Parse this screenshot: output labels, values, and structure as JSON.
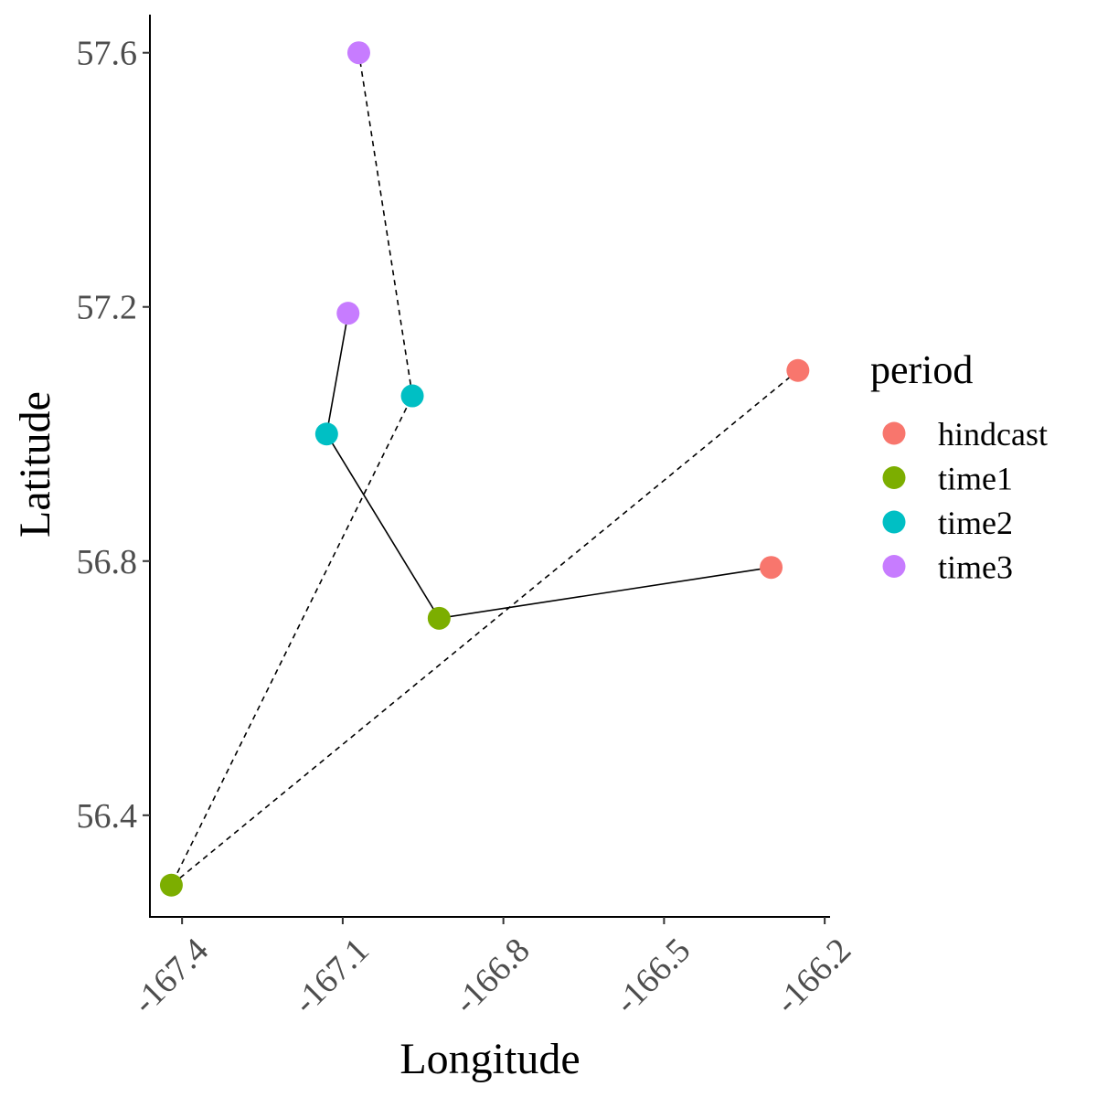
{
  "chart_data": {
    "type": "scatter",
    "title": "",
    "xlabel": "Longitude",
    "ylabel": "Latitude",
    "xlim": [
      -167.46,
      -166.19
    ],
    "ylim": [
      56.24,
      57.66
    ],
    "xticks": [
      -167.4,
      -167.1,
      -166.8,
      -166.5,
      -166.2
    ],
    "xtick_labels": [
      "-167.4",
      "-167.1",
      "-166.8",
      "-166.5",
      "-166.2"
    ],
    "yticks": [
      56.4,
      56.8,
      57.2,
      57.6
    ],
    "ytick_labels": [
      "56.4",
      "56.8",
      "57.2",
      "57.6"
    ],
    "grid": false,
    "legend": {
      "title": "period",
      "position": "right",
      "entries": [
        {
          "label": "hindcast",
          "color": "#F8766D"
        },
        {
          "label": "time1",
          "color": "#7CAE00"
        },
        {
          "label": "time2",
          "color": "#00BFC4"
        },
        {
          "label": "time3",
          "color": "#C77CFF"
        }
      ]
    },
    "points": [
      {
        "period": "hindcast",
        "x": -166.3,
        "y": 56.79
      },
      {
        "period": "time1",
        "x": -166.92,
        "y": 56.71
      },
      {
        "period": "time2",
        "x": -167.13,
        "y": 57.0
      },
      {
        "period": "time3",
        "x": -167.09,
        "y": 57.19
      },
      {
        "period": "hindcast",
        "x": -166.25,
        "y": 57.1
      },
      {
        "period": "time1",
        "x": -167.42,
        "y": 56.29
      },
      {
        "period": "time2",
        "x": -166.97,
        "y": 57.06
      },
      {
        "period": "time3",
        "x": -167.07,
        "y": 57.6
      }
    ],
    "tracks": [
      {
        "linetype": "solid",
        "x": [
          -166.3,
          -166.92,
          -167.13,
          -167.09
        ],
        "y": [
          56.79,
          56.71,
          57.0,
          57.19
        ]
      },
      {
        "linetype": "dashed",
        "x": [
          -166.25,
          -167.42,
          -166.97,
          -167.07
        ],
        "y": [
          57.1,
          56.29,
          57.06,
          57.6
        ]
      }
    ]
  }
}
